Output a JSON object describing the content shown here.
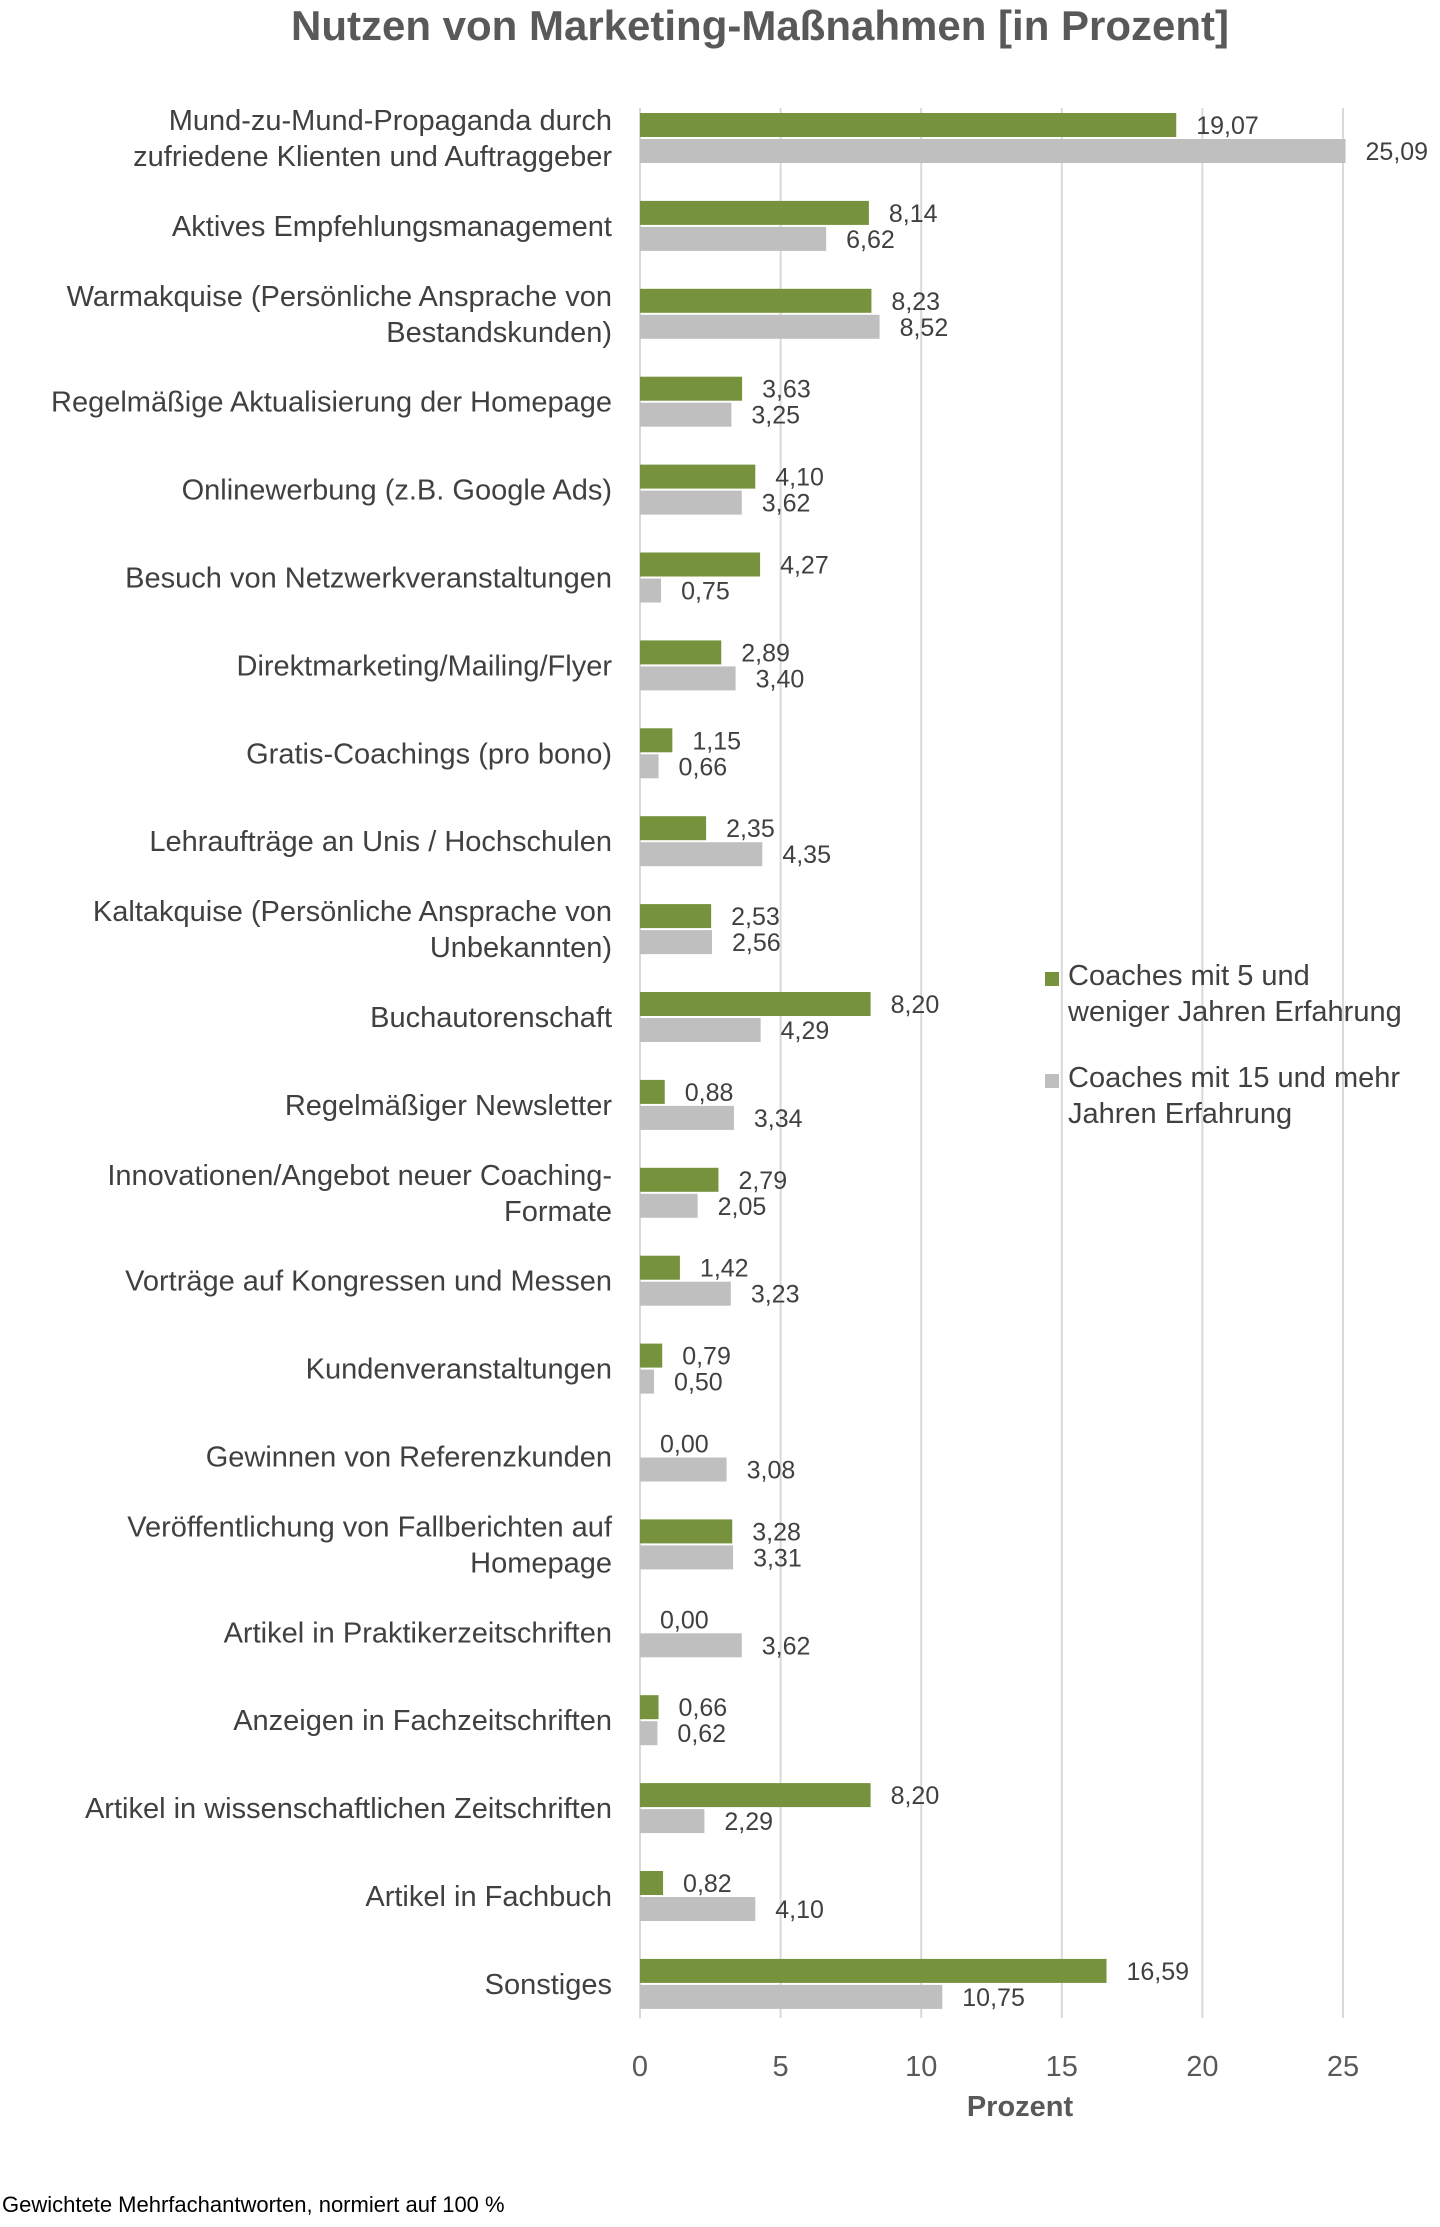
{
  "chart_data": {
    "type": "bar",
    "orientation": "horizontal",
    "title": "Nutzen von Marketing-Maßnahmen [in Prozent]",
    "xlabel": "Prozent",
    "ylabel": "",
    "xlim": [
      0,
      25
    ],
    "xticks": [
      "0",
      "5",
      "10",
      "15",
      "20",
      "25"
    ],
    "grid": true,
    "legend_position": "right",
    "categories": [
      [
        "Mund-zu-Mund-Propaganda durch",
        "zufriedene Klienten und Auftraggeber"
      ],
      [
        "Aktives Empfehlungsmanagement"
      ],
      [
        "Warmakquise (Persönliche Ansprache von",
        "Bestandskunden)"
      ],
      [
        "Regelmäßige Aktualisierung der Homepage"
      ],
      [
        "Onlinewerbung (z.B. Google Ads)"
      ],
      [
        "Besuch von Netzwerkveranstaltungen"
      ],
      [
        "Direktmarketing/Mailing/Flyer"
      ],
      [
        "Gratis-Coachings (pro bono)"
      ],
      [
        "Lehraufträge an Unis / Hochschulen"
      ],
      [
        "Kaltakquise (Persönliche Ansprache von",
        "Unbekannten)"
      ],
      [
        "Buchautorenschaft"
      ],
      [
        "Regelmäßiger Newsletter"
      ],
      [
        "Innovationen/Angebot neuer Coaching-",
        "Formate"
      ],
      [
        "Vorträge auf Kongressen und Messen"
      ],
      [
        "Kundenveranstaltungen"
      ],
      [
        "Gewinnen von Referenzkunden"
      ],
      [
        "Veröffentlichung von Fallberichten auf",
        "Homepage"
      ],
      [
        "Artikel in Praktikerzeitschriften"
      ],
      [
        "Anzeigen in Fachzeitschriften"
      ],
      [
        "Artikel in wissenschaftlichen Zeitschriften"
      ],
      [
        "Artikel in Fachbuch"
      ],
      [
        "Sonstiges"
      ]
    ],
    "series": [
      {
        "name": [
          "Coaches mit 5 und",
          "weniger Jahren Erfahrung"
        ],
        "color": "#76923c",
        "values": [
          19.07,
          8.14,
          8.23,
          3.63,
          4.1,
          4.27,
          2.89,
          1.15,
          2.35,
          2.53,
          8.2,
          0.88,
          2.79,
          1.42,
          0.79,
          0.0,
          3.28,
          0.0,
          0.66,
          8.2,
          0.82,
          16.59
        ],
        "labels": [
          "19,07",
          "8,14",
          "8,23",
          "3,63",
          "4,10",
          "4,27",
          "2,89",
          "1,15",
          "2,35",
          "2,53",
          "8,20",
          "0,88",
          "2,79",
          "1,42",
          "0,79",
          "0,00",
          "3,28",
          "0,00",
          "0,66",
          "8,20",
          "0,82",
          "16,59"
        ]
      },
      {
        "name": [
          "Coaches mit 15 und mehr",
          "Jahren Erfahrung"
        ],
        "color": "#bfbfbf",
        "values": [
          25.09,
          6.62,
          8.52,
          3.25,
          3.62,
          0.75,
          3.4,
          0.66,
          4.35,
          2.56,
          4.29,
          3.34,
          2.05,
          3.23,
          0.5,
          3.08,
          3.31,
          3.62,
          0.62,
          2.29,
          4.1,
          10.75
        ],
        "labels": [
          "25,09",
          "6,62",
          "8,52",
          "3,25",
          "3,62",
          "0,75",
          "3,40",
          "0,66",
          "4,35",
          "2,56",
          "4,29",
          "3,34",
          "2,05",
          "3,23",
          "0,50",
          "3,08",
          "3,31",
          "3,62",
          "0,62",
          "2,29",
          "4,10",
          "10,75"
        ]
      }
    ]
  },
  "footnote": "Gewichtete Mehrfachantworten, normiert auf 100 %"
}
